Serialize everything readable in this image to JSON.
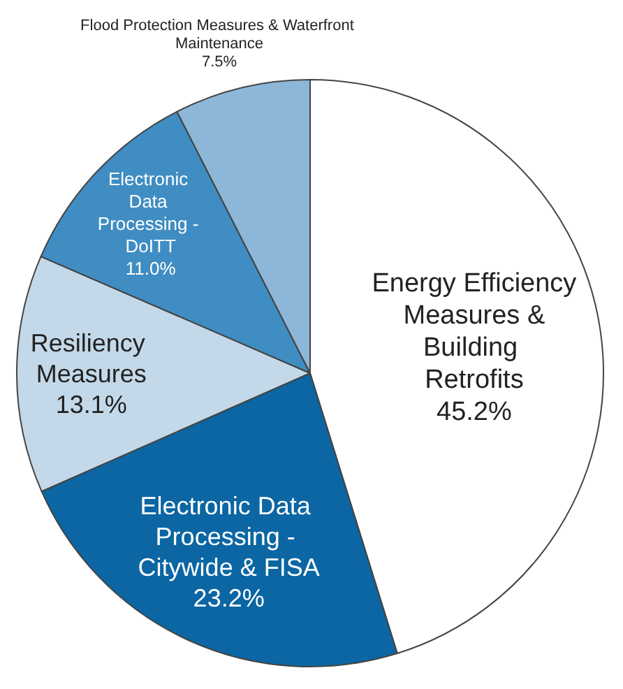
{
  "chart_data": {
    "type": "pie",
    "categories": [
      "Energy Efficiency Measures & Building Retrofits",
      "Electronic Data Processing - Citywide & FISA",
      "Resiliency Measures",
      "Electronic Data Processing - DoITT",
      "Flood Protection Measures & Waterfront Maintenance"
    ],
    "values": [
      45.2,
      23.2,
      13.1,
      11.0,
      7.5
    ],
    "value_labels": [
      "45.2%",
      "23.2%",
      "13.1%",
      "11.0%",
      "7.5%"
    ],
    "colors": [
      "#ffffff",
      "#0b66a3",
      "#c3d9e9",
      "#3f8dc2",
      "#8db7d8"
    ],
    "legend": false
  }
}
